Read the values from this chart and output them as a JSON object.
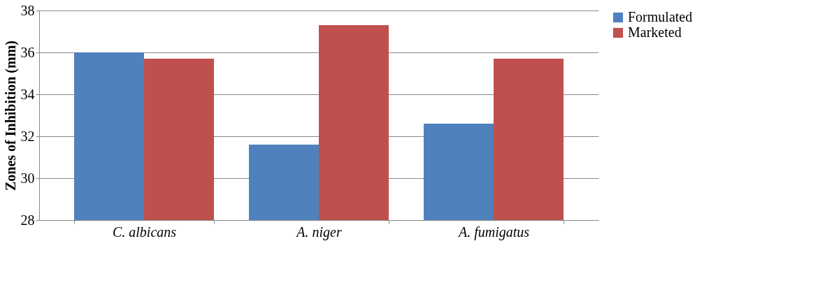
{
  "chart_data": {
    "type": "bar",
    "ylabel": "Zones of Inhibition (mm)",
    "categories": [
      "C. albicans",
      "A. niger",
      "A. fumigatus"
    ],
    "series": [
      {
        "name": "Formulated",
        "color": "#4f81bd",
        "values": [
          36.0,
          31.6,
          32.6
        ]
      },
      {
        "name": "Marketed",
        "color": "#c0504d",
        "values": [
          35.7,
          37.3,
          35.7
        ]
      }
    ],
    "ylim": [
      28,
      38
    ],
    "yticks": [
      28,
      30,
      32,
      34,
      36,
      38
    ],
    "grid": "y",
    "legend": "right"
  }
}
